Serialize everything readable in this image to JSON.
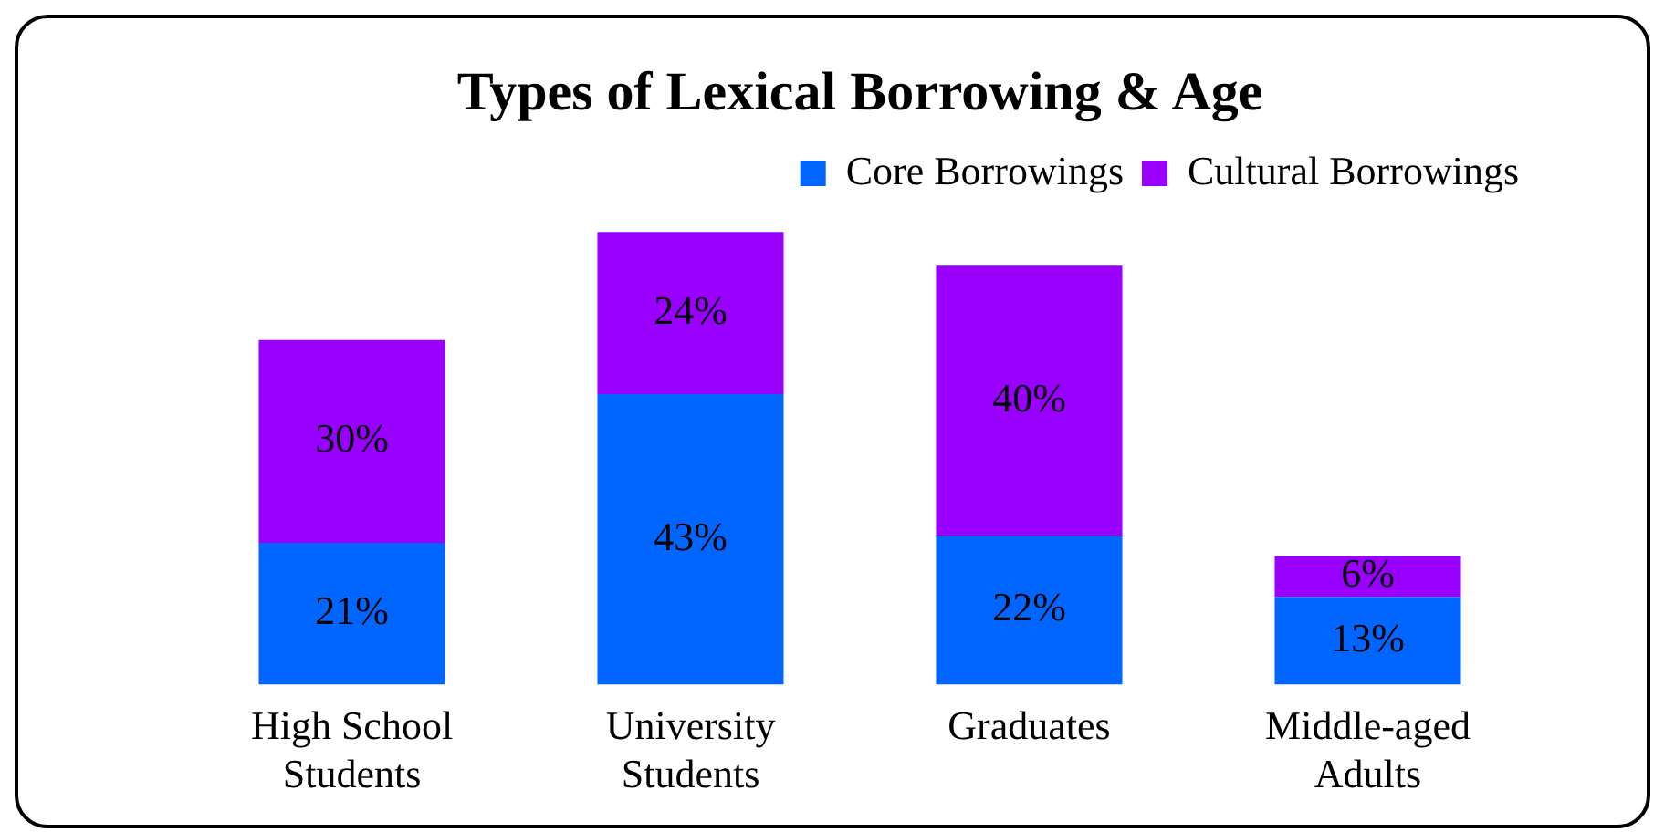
{
  "chart_data": {
    "type": "bar",
    "title": "Types of Lexical Borrowing & Age",
    "categories": [
      "High School Students",
      "University Students",
      "Graduates",
      "Middle-aged Adults"
    ],
    "stacked": true,
    "legend": "top right",
    "series": [
      {
        "name": "Core Borrowings",
        "color": "#0066ff",
        "values": [
          21,
          43,
          22,
          13
        ],
        "value_labels": [
          "21%",
          "43%",
          "22%",
          "13%"
        ]
      },
      {
        "name": "Cultural Borrowings",
        "color": "#9900ff",
        "values": [
          30,
          24,
          40,
          6
        ],
        "value_labels": [
          "30%",
          "24%",
          "40%",
          "6%"
        ]
      }
    ]
  }
}
